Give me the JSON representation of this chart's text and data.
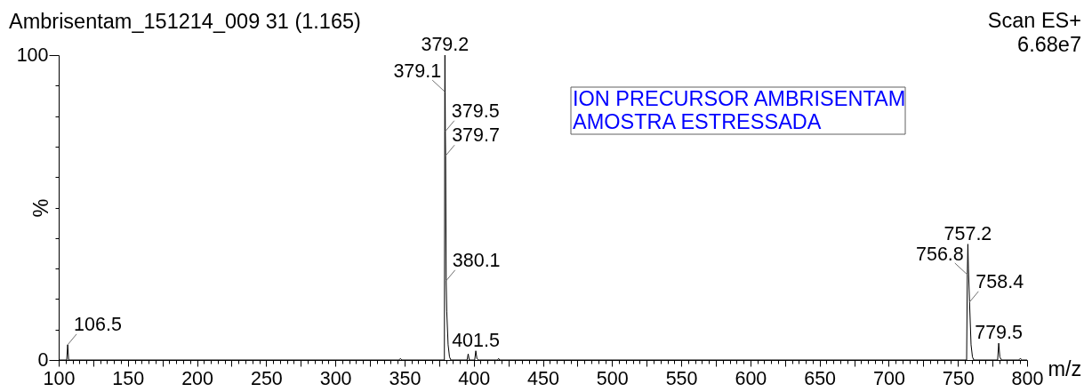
{
  "chart_data": {
    "type": "line",
    "title": "Ambrisentam_151214_009 31 (1.165)",
    "xlabel": "m/z",
    "ylabel": "%",
    "annotations": [
      "Scan ES+",
      "6.68e7",
      "ION PRECURSOR AMBRISENTAM\nAMOSTRA ESTRESSADA",
      {
        "text": "106.5",
        "x": 106.5,
        "y": 5
      },
      {
        "text": "379.1",
        "x": 379.1,
        "y": 88
      },
      {
        "text": "379.2",
        "x": 379.2,
        "y": 100
      },
      {
        "text": "379.5",
        "x": 379.5,
        "y": 75
      },
      {
        "text": "379.7",
        "x": 379.7,
        "y": 67
      },
      {
        "text": "380.1",
        "x": 380.1,
        "y": 26
      },
      {
        "text": "401.5",
        "x": 401.5,
        "y": 3
      },
      {
        "text": "756.8",
        "x": 756.8,
        "y": 28
      },
      {
        "text": "757.2",
        "x": 757.2,
        "y": 38
      },
      {
        "text": "758.4",
        "x": 758.4,
        "y": 19
      },
      {
        "text": "779.5",
        "x": 779.5,
        "y": 5.5
      }
    ],
    "x": [
      100,
      105.8,
      106.5,
      107.2,
      346,
      347,
      348,
      378.8,
      379.1,
      379.2,
      379.5,
      379.7,
      380.1,
      380.5,
      381.5,
      382.5,
      383.5,
      395.2,
      396,
      396.8,
      400.7,
      401.5,
      402.3,
      403.5,
      417.2,
      418,
      418.8,
      756.3,
      756.8,
      757.2,
      757.6,
      758.4,
      759.5,
      760.5,
      761.5,
      778.7,
      779.5,
      780.3,
      781.5,
      794,
      795,
      796.5,
      800
    ],
    "values": [
      0,
      0,
      5,
      0,
      0,
      0.5,
      0,
      0,
      88,
      100,
      75,
      67,
      26,
      16,
      5,
      1,
      0,
      0,
      2,
      0,
      0,
      3,
      0.5,
      0,
      0,
      0.5,
      0,
      0,
      28,
      38,
      30,
      19,
      5,
      1,
      0,
      0,
      5.5,
      1,
      0,
      0,
      0.5,
      0,
      0
    ],
    "color": "#000000",
    "xlim": [
      100,
      800
    ],
    "xticks": [
      100,
      {
        "value": 105,
        "label": null
      },
      {
        "value": 110,
        "label": null
      },
      {
        "value": 115,
        "label": null
      },
      {
        "value": 120,
        "label": null
      },
      {
        "value": 125,
        "label": null
      },
      {
        "value": 130,
        "label": null
      },
      {
        "value": 135,
        "label": null
      },
      {
        "value": 140,
        "label": null
      },
      {
        "value": 145,
        "label": null
      },
      150,
      {
        "value": 155,
        "label": null
      },
      {
        "value": 160,
        "label": null
      },
      {
        "value": 165,
        "label": null
      },
      {
        "value": 170,
        "label": null
      },
      {
        "value": 175,
        "label": null
      },
      {
        "value": 180,
        "label": null
      },
      {
        "value": 185,
        "label": null
      },
      {
        "value": 190,
        "label": null
      },
      {
        "value": 195,
        "label": null
      },
      200,
      {
        "value": 205,
        "label": null
      },
      {
        "value": 210,
        "label": null
      },
      {
        "value": 215,
        "label": null
      },
      {
        "value": 220,
        "label": null
      },
      {
        "value": 225,
        "label": null
      },
      {
        "value": 230,
        "label": null
      },
      {
        "value": 235,
        "label": null
      },
      {
        "value": 240,
        "label": null
      },
      {
        "value": 245,
        "label": null
      },
      250,
      {
        "value": 255,
        "label": null
      },
      {
        "value": 260,
        "label": null
      },
      {
        "value": 265,
        "label": null
      },
      {
        "value": 270,
        "label": null
      },
      {
        "value": 275,
        "label": null
      },
      {
        "value": 280,
        "label": null
      },
      {
        "value": 285,
        "label": null
      },
      {
        "value": 290,
        "label": null
      },
      {
        "value": 295,
        "label": null
      },
      300,
      {
        "value": 305,
        "label": null
      },
      {
        "value": 310,
        "label": null
      },
      {
        "value": 315,
        "label": null
      },
      {
        "value": 320,
        "label": null
      },
      {
        "value": 325,
        "label": null
      },
      {
        "value": 330,
        "label": null
      },
      {
        "value": 335,
        "label": null
      },
      {
        "value": 340,
        "label": null
      },
      {
        "value": 345,
        "label": null
      },
      350,
      {
        "value": 355,
        "label": null
      },
      {
        "value": 360,
        "label": null
      },
      {
        "value": 365,
        "label": null
      },
      {
        "value": 370,
        "label": null
      },
      {
        "value": 375,
        "label": null
      },
      {
        "value": 380,
        "label": null
      },
      {
        "value": 385,
        "label": null
      },
      {
        "value": 390,
        "label": null
      },
      {
        "value": 395,
        "label": null
      },
      400,
      {
        "value": 405,
        "label": null
      },
      {
        "value": 410,
        "label": null
      },
      {
        "value": 415,
        "label": null
      },
      {
        "value": 420,
        "label": null
      },
      {
        "value": 425,
        "label": null
      },
      {
        "value": 430,
        "label": null
      },
      {
        "value": 435,
        "label": null
      },
      {
        "value": 440,
        "label": null
      },
      {
        "value": 445,
        "label": null
      },
      450,
      {
        "value": 455,
        "label": null
      },
      {
        "value": 460,
        "label": null
      },
      {
        "value": 465,
        "label": null
      },
      {
        "value": 470,
        "label": null
      },
      {
        "value": 475,
        "label": null
      },
      {
        "value": 480,
        "label": null
      },
      {
        "value": 485,
        "label": null
      },
      {
        "value": 490,
        "label": null
      },
      {
        "value": 495,
        "label": null
      },
      500,
      {
        "value": 505,
        "label": null
      },
      {
        "value": 510,
        "label": null
      },
      {
        "value": 515,
        "label": null
      },
      {
        "value": 520,
        "label": null
      },
      {
        "value": 525,
        "label": null
      },
      {
        "value": 530,
        "label": null
      },
      {
        "value": 535,
        "label": null
      },
      {
        "value": 540,
        "label": null
      },
      {
        "value": 545,
        "label": null
      },
      550,
      {
        "value": 555,
        "label": null
      },
      {
        "value": 560,
        "label": null
      },
      {
        "value": 565,
        "label": null
      },
      {
        "value": 570,
        "label": null
      },
      {
        "value": 575,
        "label": null
      },
      {
        "value": 580,
        "label": null
      },
      {
        "value": 585,
        "label": null
      },
      {
        "value": 590,
        "label": null
      },
      {
        "value": 595,
        "label": null
      },
      600,
      {
        "value": 605,
        "label": null
      },
      {
        "value": 610,
        "label": null
      },
      {
        "value": 615,
        "label": null
      },
      {
        "value": 620,
        "label": null
      },
      {
        "value": 625,
        "label": null
      },
      {
        "value": 630,
        "label": null
      },
      {
        "value": 635,
        "label": null
      },
      {
        "value": 640,
        "label": null
      },
      {
        "value": 645,
        "label": null
      },
      650,
      {
        "value": 655,
        "label": null
      },
      {
        "value": 660,
        "label": null
      },
      {
        "value": 665,
        "label": null
      },
      {
        "value": 670,
        "label": null
      },
      {
        "value": 675,
        "label": null
      },
      {
        "value": 680,
        "label": null
      },
      {
        "value": 685,
        "label": null
      },
      {
        "value": 690,
        "label": null
      },
      {
        "value": 695,
        "label": null
      },
      700,
      {
        "value": 705,
        "label": null
      },
      {
        "value": 710,
        "label": null
      },
      {
        "value": 715,
        "label": null
      },
      {
        "value": 720,
        "label": null
      },
      {
        "value": 725,
        "label": null
      },
      {
        "value": 730,
        "label": null
      },
      {
        "value": 735,
        "label": null
      },
      {
        "value": 740,
        "label": null
      },
      {
        "value": 745,
        "label": null
      },
      750,
      {
        "value": 755,
        "label": null
      },
      {
        "value": 760,
        "label": null
      },
      {
        "value": 765,
        "label": null
      },
      {
        "value": 770,
        "label": null
      },
      {
        "value": 775,
        "label": null
      },
      {
        "value": 780,
        "label": null
      },
      {
        "value": 785,
        "label": null
      },
      {
        "value": 790,
        "label": null
      },
      {
        "value": 795,
        "label": null
      },
      800
    ],
    "ylim": [
      0,
      100
    ],
    "yticks": [
      0,
      {
        "value": 10,
        "label": null
      },
      {
        "value": 20,
        "label": null
      },
      {
        "value": 30,
        "label": null
      },
      {
        "value": 40,
        "label": null
      },
      {
        "value": 50,
        "label": null
      },
      {
        "value": 60,
        "label": null
      },
      {
        "value": 70,
        "label": null
      },
      {
        "value": 80,
        "label": null
      },
      {
        "value": 90,
        "label": null
      },
      100
    ]
  }
}
